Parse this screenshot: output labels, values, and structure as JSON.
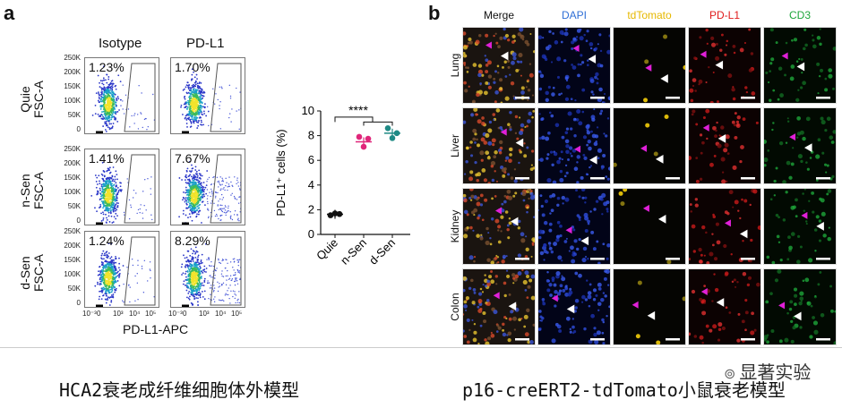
{
  "panel_a": {
    "letter": "a",
    "col_titles": [
      "Isotype",
      "PD-L1"
    ],
    "rows": [
      {
        "label1": "Quie",
        "label2": "FSC-A",
        "isotype_pct": "1.23%",
        "pdl1_pct": "1.70%"
      },
      {
        "label1": "n-Sen",
        "label2": "FSC-A",
        "isotype_pct": "1.41%",
        "pdl1_pct": "7.67%"
      },
      {
        "label1": "d-Sen",
        "label2": "FSC-A",
        "isotype_pct": "1.24%",
        "pdl1_pct": "8.29%"
      }
    ],
    "y_ticks": [
      "250K",
      "200K",
      "150K",
      "100K",
      "50K",
      "0"
    ],
    "x_ticks": [
      "10⁻³",
      "0",
      "10³",
      "10⁴",
      "10⁵"
    ],
    "x_label": "PD-L1-APC"
  },
  "chart_data": {
    "type": "scatter",
    "categories": [
      "Quie",
      "n-Sen",
      "d-Sen"
    ],
    "ylabel": "PD-L1⁺ cells (%)",
    "ylim": [
      0,
      10
    ],
    "y_ticks": [
      "0",
      "2",
      "4",
      "6",
      "8",
      "10"
    ],
    "significance": "****",
    "series": [
      {
        "category": "Quie",
        "points": [
          1.55,
          1.7,
          1.65
        ],
        "mean": 1.63,
        "color": "#111111"
      },
      {
        "category": "n-Sen",
        "points": [
          7.9,
          7.1,
          7.75
        ],
        "mean": 7.5,
        "color": "#e0267a"
      },
      {
        "category": "d-Sen",
        "points": [
          8.6,
          7.8,
          8.2
        ],
        "mean": 8.2,
        "color": "#1f8a85"
      }
    ]
  },
  "panel_b": {
    "letter": "b",
    "channels": [
      {
        "name": "Merge",
        "color": "#111111"
      },
      {
        "name": "DAPI",
        "color": "#2f6fd6"
      },
      {
        "name": "tdTomato",
        "color": "#e6b800"
      },
      {
        "name": "PD-L1",
        "color": "#e01b1b"
      },
      {
        "name": "CD3",
        "color": "#1ea53a"
      }
    ],
    "organs": [
      "Lung",
      "Liver",
      "Kidney",
      "Colon"
    ]
  },
  "captions": {
    "left": "HCA2衰老成纤维细胞体外模型",
    "right": "p16-creERT2-tdTomato小鼠衰老模型"
  },
  "watermark": "显著实验"
}
